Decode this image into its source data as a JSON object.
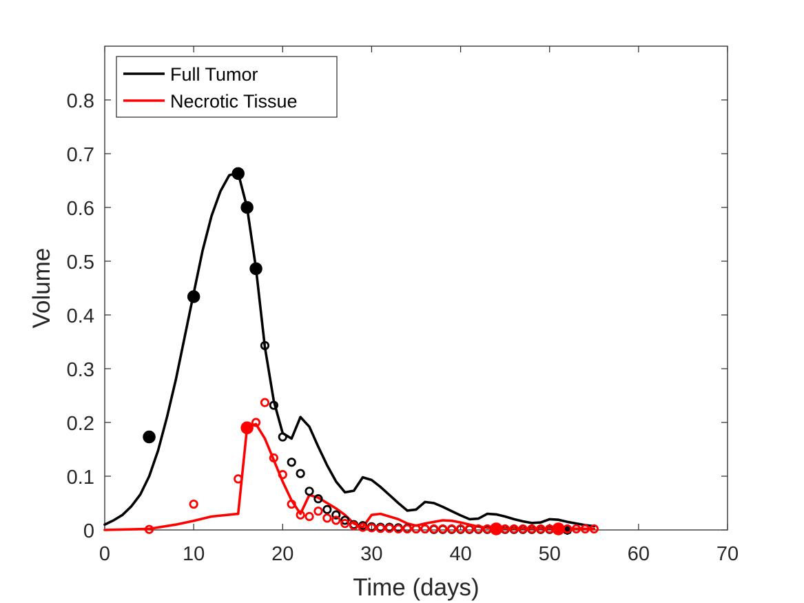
{
  "chart_data": {
    "type": "line",
    "title": "",
    "xlabel": "Time (days)",
    "ylabel": "Volume",
    "xlim": [
      0,
      70
    ],
    "ylim": [
      0,
      0.9
    ],
    "xticks": [
      0,
      10,
      20,
      30,
      40,
      50,
      60,
      70
    ],
    "xtick_labels": [
      "0",
      "10",
      "20",
      "30",
      "40",
      "50",
      "60",
      "70"
    ],
    "yticks": [
      0,
      0.1,
      0.2,
      0.3,
      0.4,
      0.5,
      0.6,
      0.7,
      0.8
    ],
    "ytick_labels": [
      "0",
      "0.1",
      "0.2",
      "0.3",
      "0.4",
      "0.5",
      "0.6",
      "0.7",
      "0.8"
    ],
    "grid": false,
    "legend_position": "top-left",
    "series": [
      {
        "name": "Full Tumor",
        "kind": "model-line",
        "color": "#000000",
        "x": [
          0,
          1,
          2,
          3,
          4,
          5,
          6,
          7,
          8,
          9,
          10,
          11,
          12,
          13,
          14,
          15,
          16,
          17,
          18,
          19,
          20,
          21,
          22,
          23,
          24,
          25,
          26,
          27,
          28,
          29,
          30,
          31,
          32,
          33,
          34,
          35,
          36,
          37,
          38,
          39,
          40,
          41,
          42,
          43,
          44,
          45,
          46,
          47,
          48,
          49,
          50,
          51,
          52,
          53,
          54,
          55
        ],
        "y": [
          0.01,
          0.018,
          0.028,
          0.044,
          0.066,
          0.1,
          0.148,
          0.21,
          0.28,
          0.36,
          0.44,
          0.52,
          0.584,
          0.63,
          0.66,
          0.664,
          0.6,
          0.487,
          0.34,
          0.24,
          0.18,
          0.17,
          0.21,
          0.192,
          0.155,
          0.12,
          0.09,
          0.07,
          0.073,
          0.098,
          0.093,
          0.08,
          0.065,
          0.05,
          0.036,
          0.038,
          0.052,
          0.05,
          0.043,
          0.035,
          0.027,
          0.02,
          0.021,
          0.03,
          0.029,
          0.025,
          0.02,
          0.016,
          0.013,
          0.014,
          0.02,
          0.019,
          0.015,
          0.012,
          0.009,
          0.007
        ]
      },
      {
        "name": "Necrotic Tissue",
        "kind": "model-line",
        "color": "#ff0000",
        "x": [
          0,
          5,
          8,
          10,
          12,
          15,
          16,
          17,
          18,
          19,
          20,
          21,
          22,
          23,
          24,
          25,
          26,
          27,
          28,
          29,
          30,
          31,
          32,
          33,
          34,
          35,
          36,
          37,
          38,
          39,
          40,
          41,
          42,
          43,
          44,
          45,
          50,
          55
        ],
        "y": [
          0,
          0.002,
          0.01,
          0.017,
          0.025,
          0.03,
          0.19,
          0.197,
          0.17,
          0.13,
          0.09,
          0.055,
          0.03,
          0.065,
          0.06,
          0.05,
          0.04,
          0.028,
          0.012,
          0.005,
          0.028,
          0.03,
          0.025,
          0.02,
          0.012,
          0.008,
          0.012,
          0.015,
          0.018,
          0.017,
          0.014,
          0.01,
          0.006,
          0.004,
          0.004,
          0.003,
          0.003,
          0.002
        ]
      },
      {
        "name": "Full Tumor data",
        "kind": "data-points",
        "color": "#000000",
        "filled_x": [
          5,
          10,
          15,
          16,
          17
        ],
        "filled_y": [
          0.173,
          0.434,
          0.663,
          0.6,
          0.486
        ],
        "open_x": [
          18,
          19,
          20,
          21,
          22,
          23,
          24,
          25,
          26,
          27,
          28,
          29,
          30,
          31,
          32,
          33,
          34,
          35,
          36,
          37,
          38,
          39,
          40,
          41,
          42,
          43,
          44,
          45,
          46,
          47,
          48,
          49,
          50,
          51,
          52
        ],
        "open_y": [
          0.343,
          0.232,
          0.173,
          0.126,
          0.105,
          0.072,
          0.058,
          0.038,
          0.028,
          0.018,
          0.01,
          0.008,
          0.006,
          0.005,
          0.005,
          0.004,
          0.003,
          0.002,
          0.002,
          0.001,
          0.001,
          0.001,
          0.001,
          0.001,
          0.001,
          0.001,
          0.001,
          0.001,
          0.001,
          0.001,
          0.001,
          0.001,
          0.001,
          0.001,
          0
        ],
        "star_x": [
          44,
          51,
          52
        ],
        "star_y": [
          0.001,
          0.001,
          0
        ]
      },
      {
        "name": "Necrotic Tissue data",
        "kind": "data-points",
        "color": "#ff0000",
        "filled_x": [
          16,
          44,
          51
        ],
        "filled_y": [
          0.19,
          0.002,
          0.002
        ],
        "open_x": [
          5,
          10,
          15,
          17,
          18,
          19,
          20,
          21,
          22,
          23,
          24,
          25,
          26,
          27,
          28,
          29,
          30,
          31,
          32,
          33,
          34,
          35,
          36,
          37,
          38,
          39,
          40,
          41,
          42,
          43,
          45,
          46,
          47,
          48,
          49,
          50,
          52,
          53,
          54,
          55
        ],
        "open_y": [
          0.001,
          0.048,
          0.095,
          0.2,
          0.237,
          0.134,
          0.103,
          0.048,
          0.028,
          0.025,
          0.035,
          0.022,
          0.018,
          0.012,
          0.008,
          0.005,
          0.004,
          0.003,
          0.003,
          0.002,
          0.002,
          0.002,
          0.002,
          0.002,
          0.002,
          0.002,
          0.002,
          0.002,
          0.002,
          0.002,
          0.002,
          0.002,
          0.002,
          0.002,
          0.002,
          0.002,
          0.002,
          0.002,
          0.002,
          0.002
        ]
      }
    ]
  },
  "legend": {
    "items": [
      {
        "label": "Full Tumor",
        "color": "#000000"
      },
      {
        "label": "Necrotic Tissue",
        "color": "#ff0000"
      }
    ]
  }
}
